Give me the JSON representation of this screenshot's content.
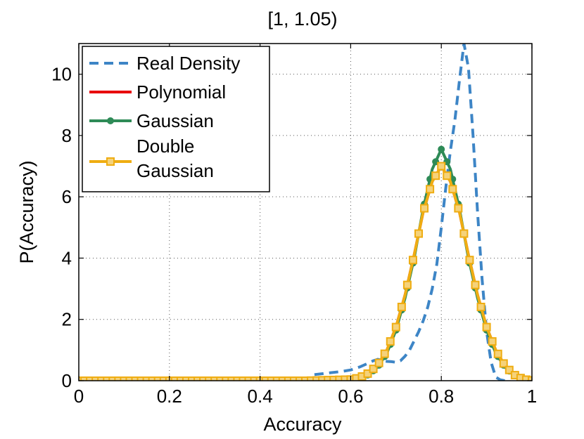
{
  "chart_data": {
    "type": "line",
    "title": "[1, 1.05)",
    "xlabel": "Accuracy",
    "ylabel": "P(Accuracy)",
    "xlim": [
      0,
      1
    ],
    "ylim": [
      0,
      11
    ],
    "xticks": [
      0,
      0.2,
      0.4,
      0.6,
      0.8,
      1
    ],
    "xtick_labels": [
      "0",
      "0.2",
      "0.4",
      "0.6",
      "0.8",
      "1"
    ],
    "yticks": [
      0,
      2,
      4,
      6,
      8,
      10
    ],
    "ytick_labels": [
      "0",
      "2",
      "4",
      "6",
      "8",
      "10"
    ],
    "grid": true,
    "legend_position": "top-left",
    "series": [
      {
        "name": "Real Density",
        "style": "dashed",
        "marker": "none",
        "color": "#3d85c6",
        "x": [
          0.52,
          0.55,
          0.58,
          0.6,
          0.62,
          0.64,
          0.65,
          0.66,
          0.67,
          0.68,
          0.69,
          0.7,
          0.71,
          0.72,
          0.73,
          0.74,
          0.75,
          0.76,
          0.77,
          0.78,
          0.79,
          0.8,
          0.81,
          0.82,
          0.83,
          0.84,
          0.85,
          0.86,
          0.87,
          0.88,
          0.89,
          0.9,
          0.91,
          0.92,
          0.93,
          0.94
        ],
        "y": [
          0.2,
          0.25,
          0.3,
          0.35,
          0.45,
          0.58,
          0.65,
          0.7,
          0.66,
          0.63,
          0.62,
          0.6,
          0.65,
          0.8,
          1.0,
          1.3,
          1.6,
          1.95,
          2.4,
          3.0,
          3.8,
          5.0,
          6.3,
          7.5,
          8.5,
          9.8,
          11.0,
          10.2,
          8.0,
          5.5,
          3.3,
          1.6,
          0.6,
          0.12,
          0.03,
          0.0
        ]
      },
      {
        "name": "Polynomial",
        "style": "solid",
        "marker": "none",
        "color": "#e8000b",
        "x": [
          0,
          0.5,
          0.6,
          0.62,
          0.64,
          0.66,
          0.68,
          0.7,
          0.72,
          0.74,
          0.76,
          0.78,
          0.8,
          0.82,
          0.84,
          0.86,
          0.88,
          0.9,
          0.92,
          0.94,
          0.96,
          0.98,
          1.0
        ],
        "y": [
          0.0,
          0.0,
          0.04,
          0.1,
          0.25,
          0.52,
          1.0,
          1.75,
          2.8,
          4.1,
          5.5,
          6.5,
          7.0,
          6.5,
          5.5,
          4.1,
          2.8,
          1.75,
          1.0,
          0.5,
          0.2,
          0.05,
          0.01
        ]
      },
      {
        "name": "Gaussian",
        "style": "solid",
        "marker": "circle",
        "color": "#2e8b57",
        "x": [
          0,
          0.5,
          0.6,
          0.62,
          0.64,
          0.66,
          0.68,
          0.7,
          0.72,
          0.74,
          0.76,
          0.78,
          0.8,
          0.82,
          0.84,
          0.86,
          0.88,
          0.9,
          0.92,
          0.94,
          0.96,
          0.98,
          1.0
        ],
        "y": [
          0.0,
          0.0,
          0.03,
          0.08,
          0.2,
          0.45,
          0.9,
          1.65,
          2.7,
          4.0,
          5.6,
          6.9,
          7.55,
          6.9,
          5.6,
          4.0,
          2.7,
          1.65,
          0.9,
          0.45,
          0.18,
          0.05,
          0.01
        ]
      },
      {
        "name": "Double\nGaussian",
        "style": "solid",
        "marker": "square",
        "color": "#efad12",
        "x": [
          0,
          0.5,
          0.6,
          0.62,
          0.64,
          0.66,
          0.68,
          0.7,
          0.72,
          0.74,
          0.76,
          0.78,
          0.8,
          0.82,
          0.84,
          0.86,
          0.88,
          0.9,
          0.92,
          0.94,
          0.96,
          0.98,
          1.0
        ],
        "y": [
          0.0,
          0.0,
          0.04,
          0.1,
          0.25,
          0.52,
          1.0,
          1.75,
          2.8,
          4.1,
          5.5,
          6.5,
          7.0,
          6.5,
          5.5,
          4.1,
          2.8,
          1.75,
          1.0,
          0.5,
          0.2,
          0.05,
          0.01
        ]
      }
    ]
  }
}
